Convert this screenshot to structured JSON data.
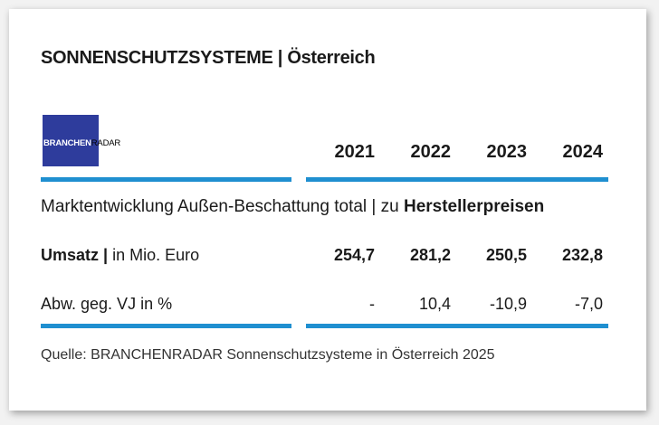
{
  "header": {
    "title": "SONNENSCHUTZSYSTEME | Österreich",
    "logo": {
      "bold": "BRANCHEN",
      "light": "RADAR"
    }
  },
  "table": {
    "columns": [
      "2021",
      "2022",
      "2023",
      "2024"
    ],
    "section": {
      "text": "Marktentwicklung Außen-Beschattung total | zu ",
      "bold": "Herstellerpreisen"
    },
    "rows": [
      {
        "label": {
          "bold": "Umsatz |",
          "text": " in Mio. Euro"
        },
        "values": [
          "254,7",
          "281,2",
          "250,5",
          "232,8"
        ]
      },
      {
        "label": {
          "text": "Abw. geg. VJ in %"
        },
        "values": [
          "-",
          "10,4",
          "-10,9",
          "-7,0"
        ]
      }
    ]
  },
  "footer": {
    "source": "Quelle: BRANCHENRADAR Sonnenschutzsysteme in Österreich 2025"
  }
}
